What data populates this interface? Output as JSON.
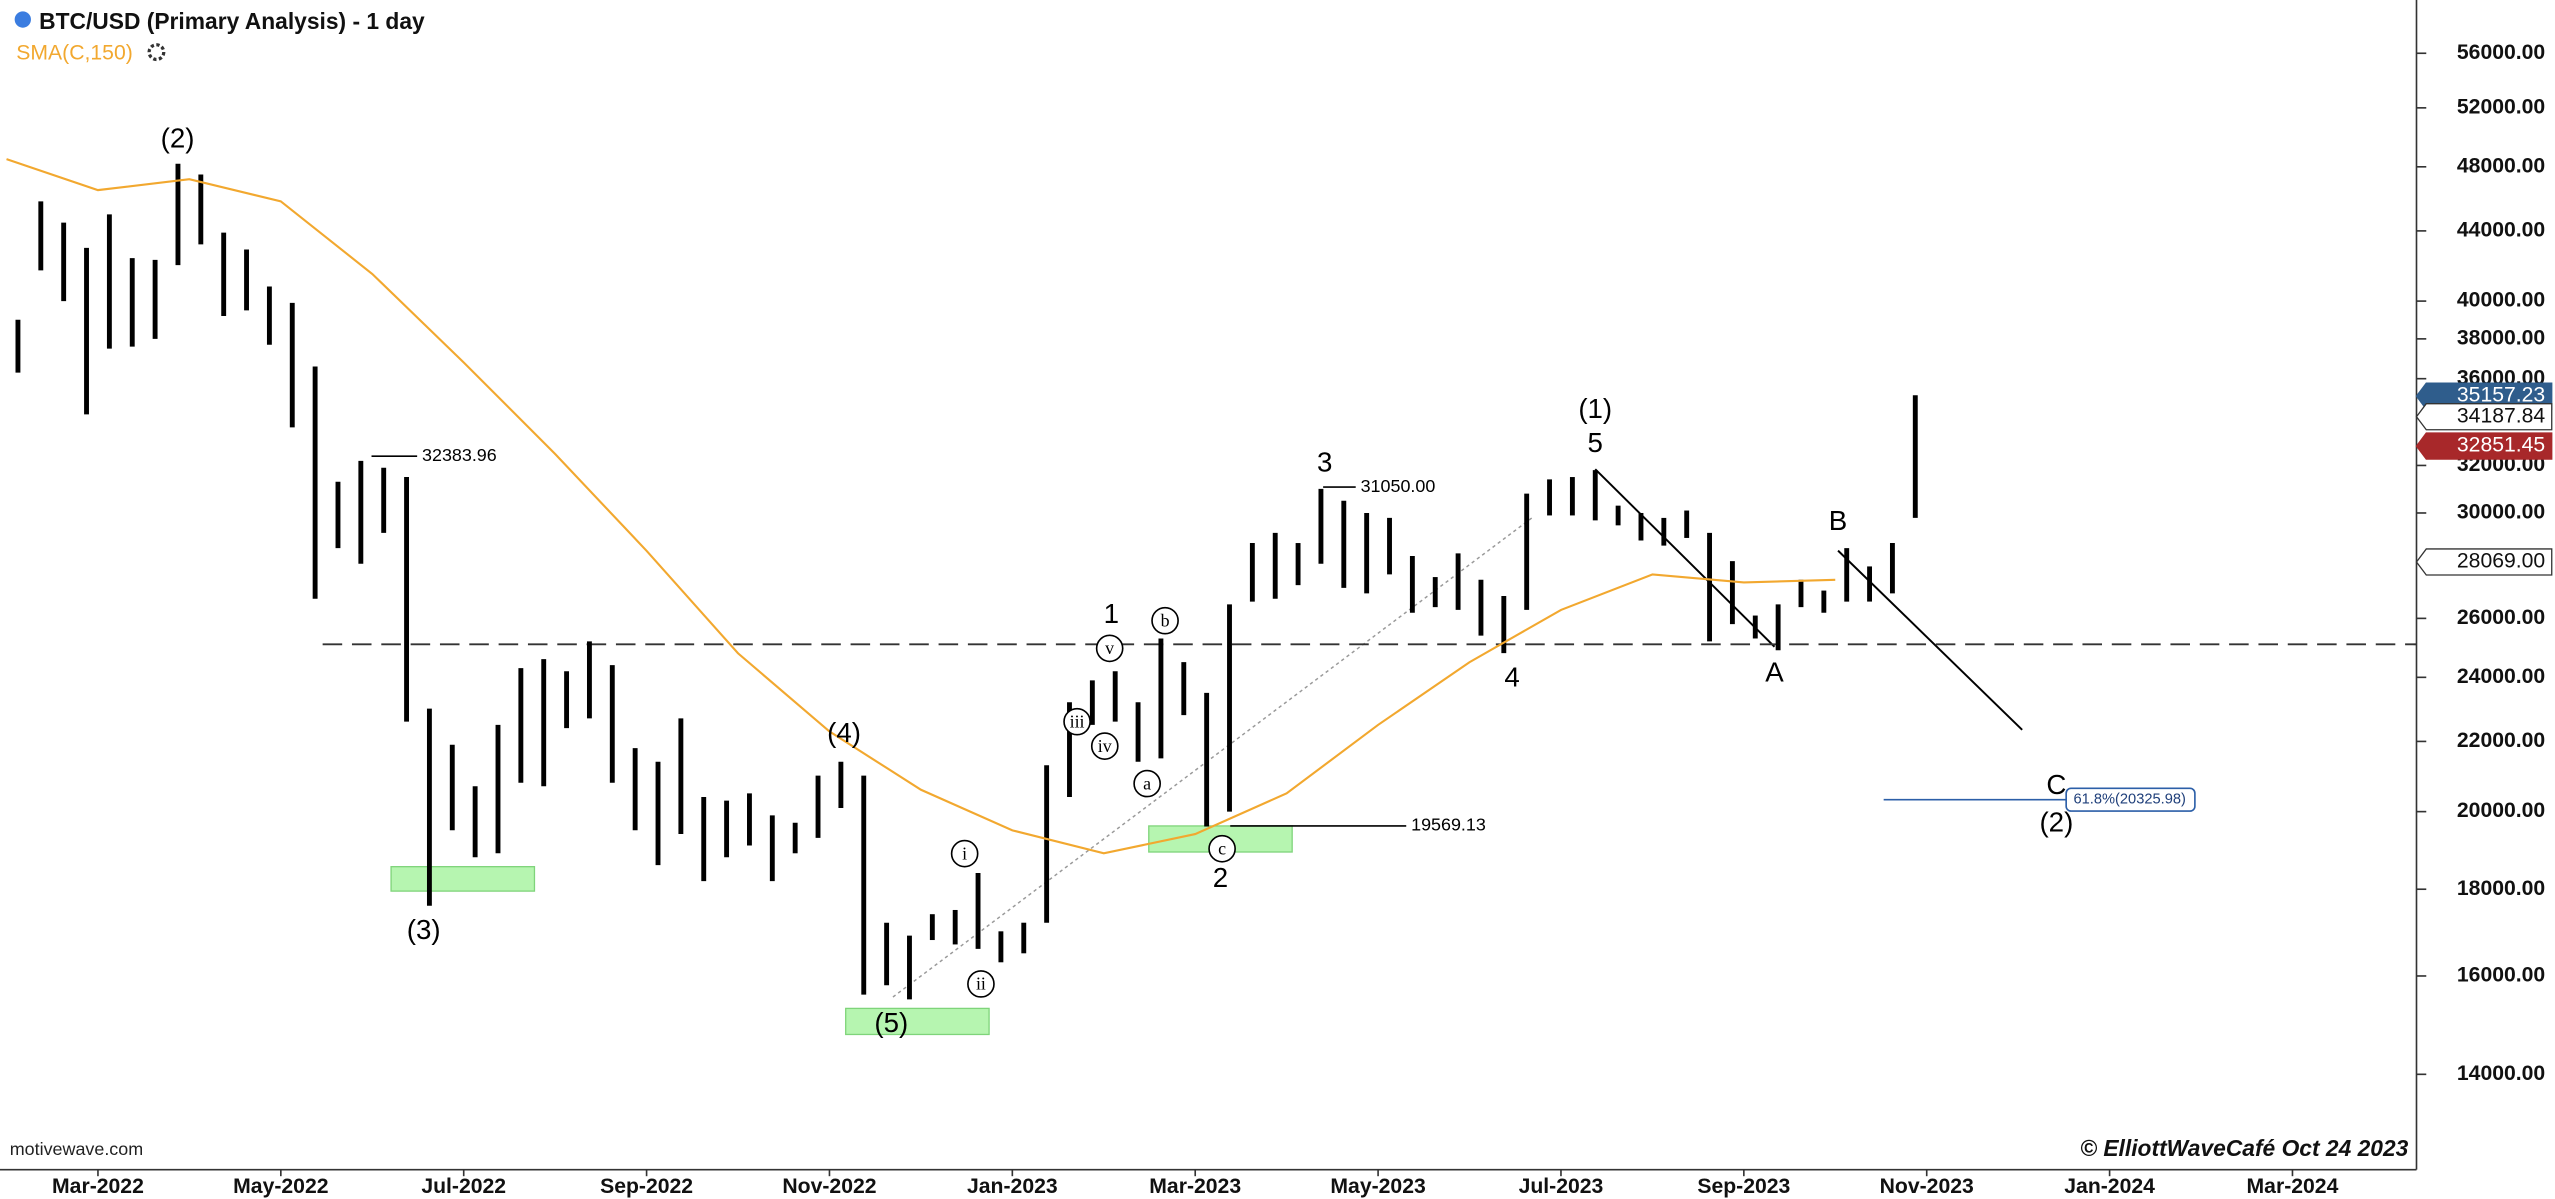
{
  "chart_data": {
    "type": "ohlc",
    "title": "BTC/USD (Primary Analysis) - 1 day",
    "x": [
      "2022-02",
      "2022-03",
      "2022-04",
      "2022-05",
      "2022-06",
      "2022-07",
      "2022-08",
      "2022-09",
      "2022-10",
      "2022-11",
      "2022-12",
      "2023-01",
      "2023-02",
      "2023-03",
      "2023-04",
      "2023-05",
      "2023-06",
      "2023-07",
      "2023-08",
      "2023-09",
      "2023-10"
    ],
    "high": [
      [
        39000,
        45800,
        44500,
        43000
      ],
      [
        45000,
        42400,
        42300,
        48200
      ],
      [
        47500,
        43900,
        42900,
        40800
      ],
      [
        39900,
        36600,
        31300,
        32200
      ],
      [
        31900,
        31500,
        23000,
        21900
      ],
      [
        20700,
        22500,
        24300,
        24600
      ],
      [
        24200,
        25200,
        24400,
        21800
      ],
      [
        21400,
        22700,
        20400,
        20300
      ],
      [
        20500,
        19900,
        19700,
        21000
      ],
      [
        21400,
        21000,
        17200,
        16900
      ],
      [
        17400,
        17500,
        18400,
        17000
      ],
      [
        17200,
        21300,
        23200,
        23900
      ],
      [
        24200,
        23200,
        25300,
        24500
      ],
      [
        23500,
        26500,
        28800,
        29200
      ],
      [
        28800,
        31000,
        30500,
        30000
      ],
      [
        29800,
        28300,
        27500,
        28400
      ],
      [
        27400,
        26800,
        30800,
        31400
      ],
      [
        31500,
        31800,
        30300,
        30000
      ],
      [
        29800,
        30100,
        29200,
        28100
      ],
      [
        26100,
        26500,
        27400,
        27000
      ],
      [
        28600,
        27900,
        28800,
        35200
      ]
    ],
    "low": [
      [
        36300,
        41700,
        40000,
        34300
      ],
      [
        37500,
        37600,
        38000,
        42000
      ],
      [
        43200,
        39200,
        39500,
        37700
      ],
      [
        33700,
        26700,
        28600,
        28000
      ],
      [
        29200,
        22600,
        17600,
        19500
      ],
      [
        18800,
        18900,
        20800,
        20700
      ],
      [
        22400,
        22700,
        20800,
        19500
      ],
      [
        18600,
        19400,
        18200,
        18800
      ],
      [
        19100,
        18200,
        18900,
        19300
      ],
      [
        20100,
        15600,
        15800,
        15500
      ],
      [
        16800,
        16700,
        16600,
        16300
      ],
      [
        16500,
        17200,
        20400,
        22500
      ],
      [
        22600,
        21400,
        21500,
        22800
      ],
      [
        19600,
        20000,
        26600,
        26700
      ],
      [
        27200,
        28000,
        27100,
        26900
      ],
      [
        27600,
        26200,
        26400,
        26300
      ],
      [
        25400,
        24800,
        26300,
        29900
      ],
      [
        29900,
        29700,
        29500,
        28900
      ],
      [
        28700,
        29000,
        25200,
        25800
      ],
      [
        25300,
        24900,
        26400,
        26200
      ],
      [
        26600,
        26600,
        26900,
        29800
      ]
    ],
    "color": "#000000",
    "sma": {
      "name": "SMA(C,150)",
      "color": "#f2a82f",
      "values": [
        48500,
        46500,
        47200,
        45800,
        41500,
        36800,
        32500,
        28500,
        24800,
        22300,
        20600,
        19500,
        18900,
        19400,
        20500,
        22500,
        24500,
        26300,
        27600,
        27300,
        27400
      ]
    },
    "log_scale": true,
    "ylim": [
      12300,
      60200
    ],
    "yticks": [
      {
        "value": 14000,
        "label": "14000.00"
      },
      {
        "value": 16000,
        "label": "16000.00"
      },
      {
        "value": 18000,
        "label": "18000.00"
      },
      {
        "value": 20000,
        "label": "20000.00"
      },
      {
        "value": 22000,
        "label": "22000.00"
      },
      {
        "value": 24000,
        "label": "24000.00"
      },
      {
        "value": 26000,
        "label": "26000.00"
      },
      {
        "value": 30000,
        "label": "30000.00"
      },
      {
        "value": 32000,
        "label": "32000.00"
      },
      {
        "value": 36000,
        "label": "36000.00"
      },
      {
        "value": 38000,
        "label": "38000.00"
      },
      {
        "value": 40000,
        "label": "40000.00"
      },
      {
        "value": 44000,
        "label": "44000.00"
      },
      {
        "value": 48000,
        "label": "48000.00"
      },
      {
        "value": 52000,
        "label": "52000.00"
      },
      {
        "value": 56000,
        "label": "56000.00"
      }
    ],
    "xlim": [
      "2022-02",
      "2024-04"
    ],
    "xticks": [
      {
        "value": "2022-03",
        "label": "Mar-2022"
      },
      {
        "value": "2022-05",
        "label": "May-2022"
      },
      {
        "value": "2022-07",
        "label": "Jul-2022"
      },
      {
        "value": "2022-09",
        "label": "Sep-2022"
      },
      {
        "value": "2022-11",
        "label": "Nov-2022"
      },
      {
        "value": "2023-01",
        "label": "Jan-2023"
      },
      {
        "value": "2023-03",
        "label": "Mar-2023"
      },
      {
        "value": "2023-05",
        "label": "May-2023"
      },
      {
        "value": "2023-07",
        "label": "Jul-2023"
      },
      {
        "value": "2023-09",
        "label": "Sep-2023"
      },
      {
        "value": "2023-11",
        "label": "Nov-2023"
      },
      {
        "value": "2024-01",
        "label": "Jan-2024"
      },
      {
        "value": "2024-03",
        "label": "Mar-2024"
      }
    ],
    "levels": [
      25100
    ],
    "fib_level": 20325.98,
    "fib_label": "61.8%(20325.98)",
    "price_markers": [
      {
        "value": 35157.23,
        "label": "35157.23",
        "color": "#2f5d8c"
      },
      {
        "value": 34187.84,
        "label": "34187.84",
        "color": "#ffffff"
      },
      {
        "value": 32851.45,
        "label": "32851.45",
        "color": "#a8282a"
      },
      {
        "value": 28069.0,
        "label": "28069.00",
        "color": "#ffffff"
      }
    ],
    "annotations": [
      "(2)",
      "(3)",
      "(4)",
      "(5)",
      "1",
      "2",
      "3",
      "4",
      "(1)",
      "5",
      "A",
      "B",
      "C",
      "(2)",
      "i",
      "ii",
      "iii",
      "iv",
      "v",
      "a",
      "b",
      "c",
      "32383.96",
      "31050.00",
      "19569.13"
    ],
    "watermark": "motivewave.com",
    "copyright": "© ElliottWaveCafé Oct 24 2023"
  }
}
